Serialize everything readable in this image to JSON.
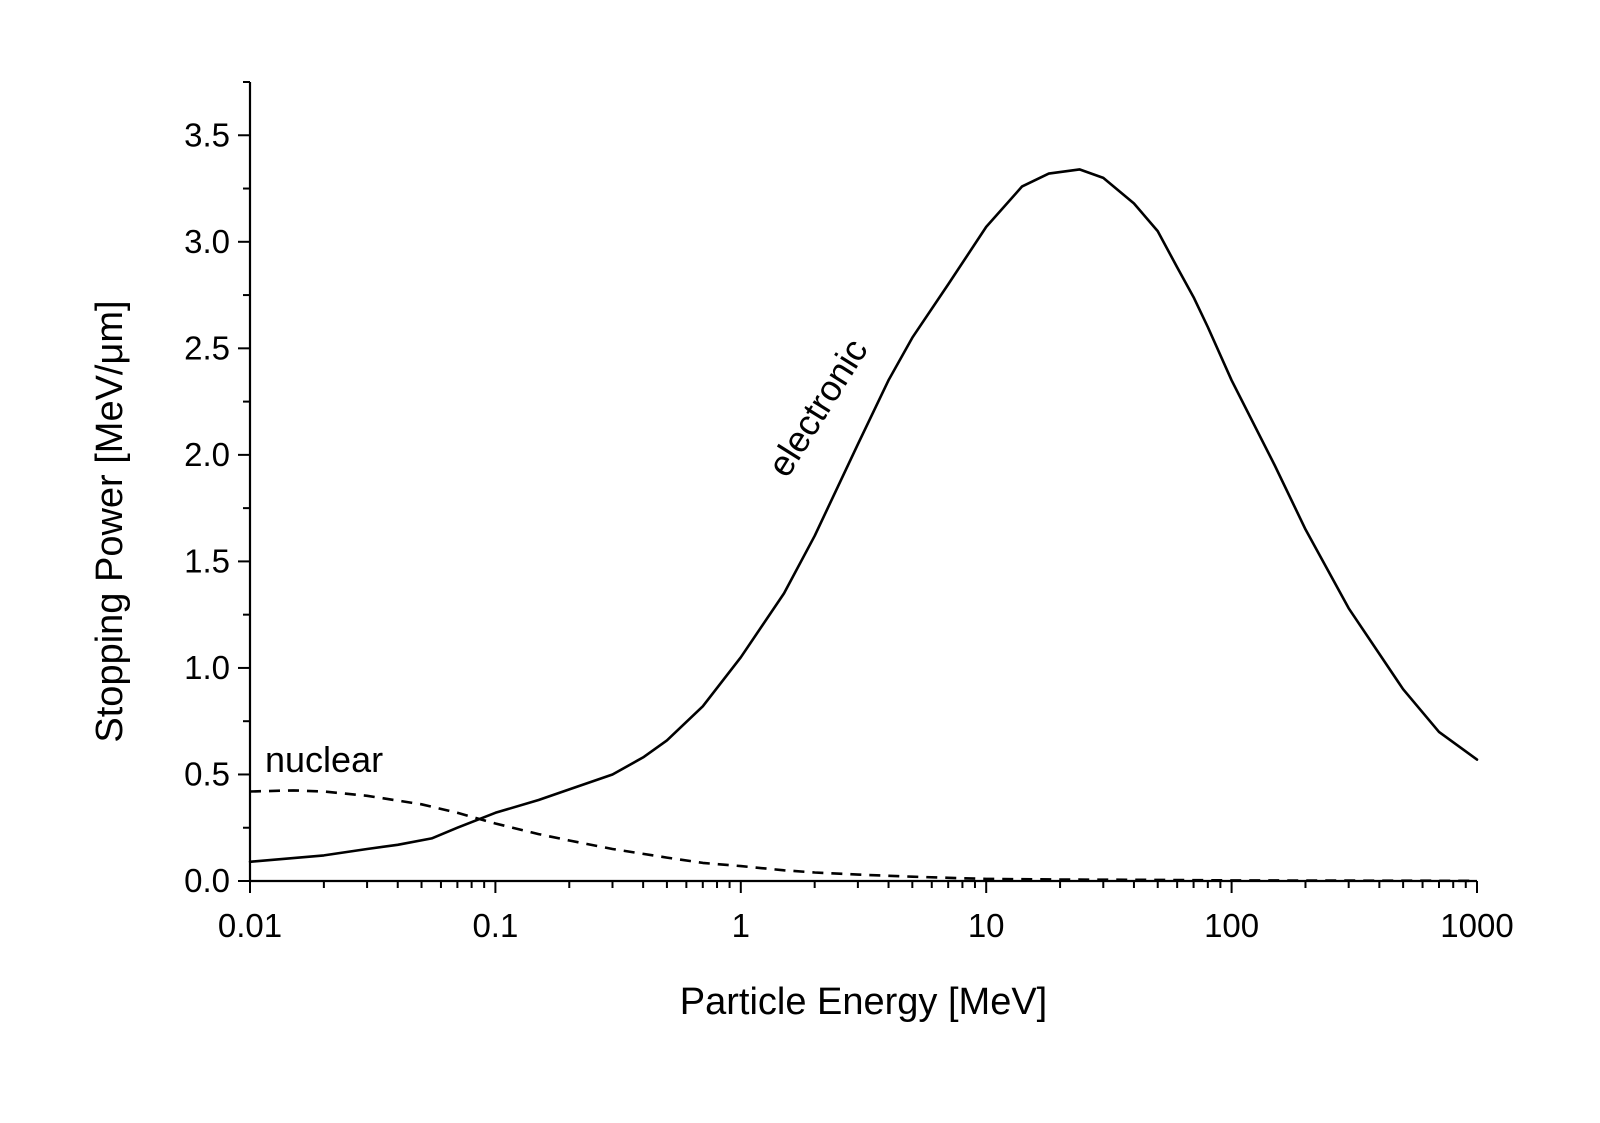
{
  "chart_data": {
    "type": "line",
    "title": "",
    "xlabel": "Particle Energy [MeV]",
    "ylabel": "Stopping Power [MeV/μm]",
    "xscale": "log",
    "xlim": [
      0.01,
      1000
    ],
    "ylim": [
      0,
      3.75
    ],
    "x_ticks": [
      0.01,
      0.1,
      1,
      10,
      100,
      1000
    ],
    "x_tick_labels": [
      "0.01",
      "0.1",
      "1",
      "10",
      "100",
      "1000"
    ],
    "y_ticks": [
      0.0,
      0.5,
      1.0,
      1.5,
      2.0,
      2.5,
      3.0,
      3.5
    ],
    "y_tick_labels": [
      "0.0",
      "0.5",
      "1.0",
      "1.5",
      "2.0",
      "2.5",
      "3.0",
      "3.5"
    ],
    "y_minor_step": 0.25,
    "grid": false,
    "legend": "none",
    "series": [
      {
        "name": "electronic",
        "style": "solid",
        "x": [
          0.01,
          0.02,
          0.03,
          0.04,
          0.055,
          0.07,
          0.1,
          0.15,
          0.2,
          0.3,
          0.4,
          0.5,
          0.7,
          1,
          1.5,
          2,
          3,
          4,
          5,
          7,
          10,
          14,
          18,
          24,
          30,
          40,
          50,
          60,
          70,
          80,
          100,
          150,
          200,
          300,
          500,
          700,
          1000
        ],
        "y": [
          0.09,
          0.12,
          0.15,
          0.17,
          0.2,
          0.25,
          0.32,
          0.38,
          0.43,
          0.5,
          0.58,
          0.66,
          0.82,
          1.05,
          1.35,
          1.62,
          2.05,
          2.35,
          2.55,
          2.8,
          3.07,
          3.26,
          3.32,
          3.34,
          3.3,
          3.18,
          3.05,
          2.88,
          2.74,
          2.6,
          2.35,
          1.95,
          1.65,
          1.28,
          0.9,
          0.7,
          0.57
        ]
      },
      {
        "name": "nuclear",
        "style": "dashed",
        "x": [
          0.01,
          0.015,
          0.02,
          0.03,
          0.05,
          0.07,
          0.1,
          0.15,
          0.2,
          0.3,
          0.5,
          0.7,
          1,
          1.5,
          2,
          3,
          5,
          7,
          10,
          20,
          50,
          100,
          300,
          1000
        ],
        "y": [
          0.42,
          0.425,
          0.42,
          0.4,
          0.36,
          0.32,
          0.27,
          0.22,
          0.19,
          0.15,
          0.11,
          0.085,
          0.07,
          0.05,
          0.04,
          0.03,
          0.02,
          0.015,
          0.01,
          0.007,
          0.005,
          0.003,
          0.002,
          0.001
        ]
      }
    ],
    "annotations": [
      {
        "text": "electronic",
        "series": "electronic",
        "rotation": "along curve"
      },
      {
        "text": "nuclear",
        "series": "nuclear"
      }
    ]
  }
}
